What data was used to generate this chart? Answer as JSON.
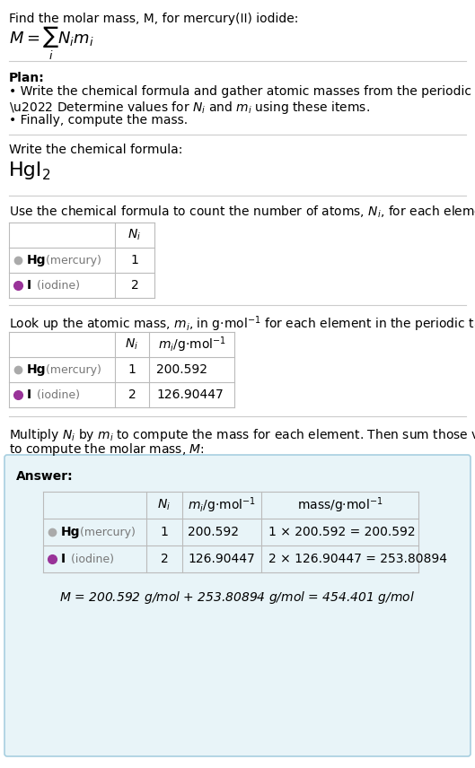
{
  "title_line": "Find the molar mass, M, for mercury(II) iodide:",
  "bg_color": "#ffffff",
  "answer_box_color": "#e8f4f8",
  "answer_box_border": "#a8cfe0",
  "table_border_color": "#bbbbbb",
  "hg_dot_color": "#aaaaaa",
  "i_dot_color": "#993399",
  "text_color": "#000000",
  "gray_text": "#777777",
  "sep_color": "#cccccc",
  "Ni": [
    1,
    2
  ],
  "mi": [
    "200.592",
    "126.90447"
  ],
  "mass_eq_hg": "1 × 200.592 = 200.592",
  "mass_eq_i": "2 × 126.90447 = 253.80894",
  "final_eq": "M = 200.592 g/mol + 253.80894 g/mol = 454.401 g/mol"
}
